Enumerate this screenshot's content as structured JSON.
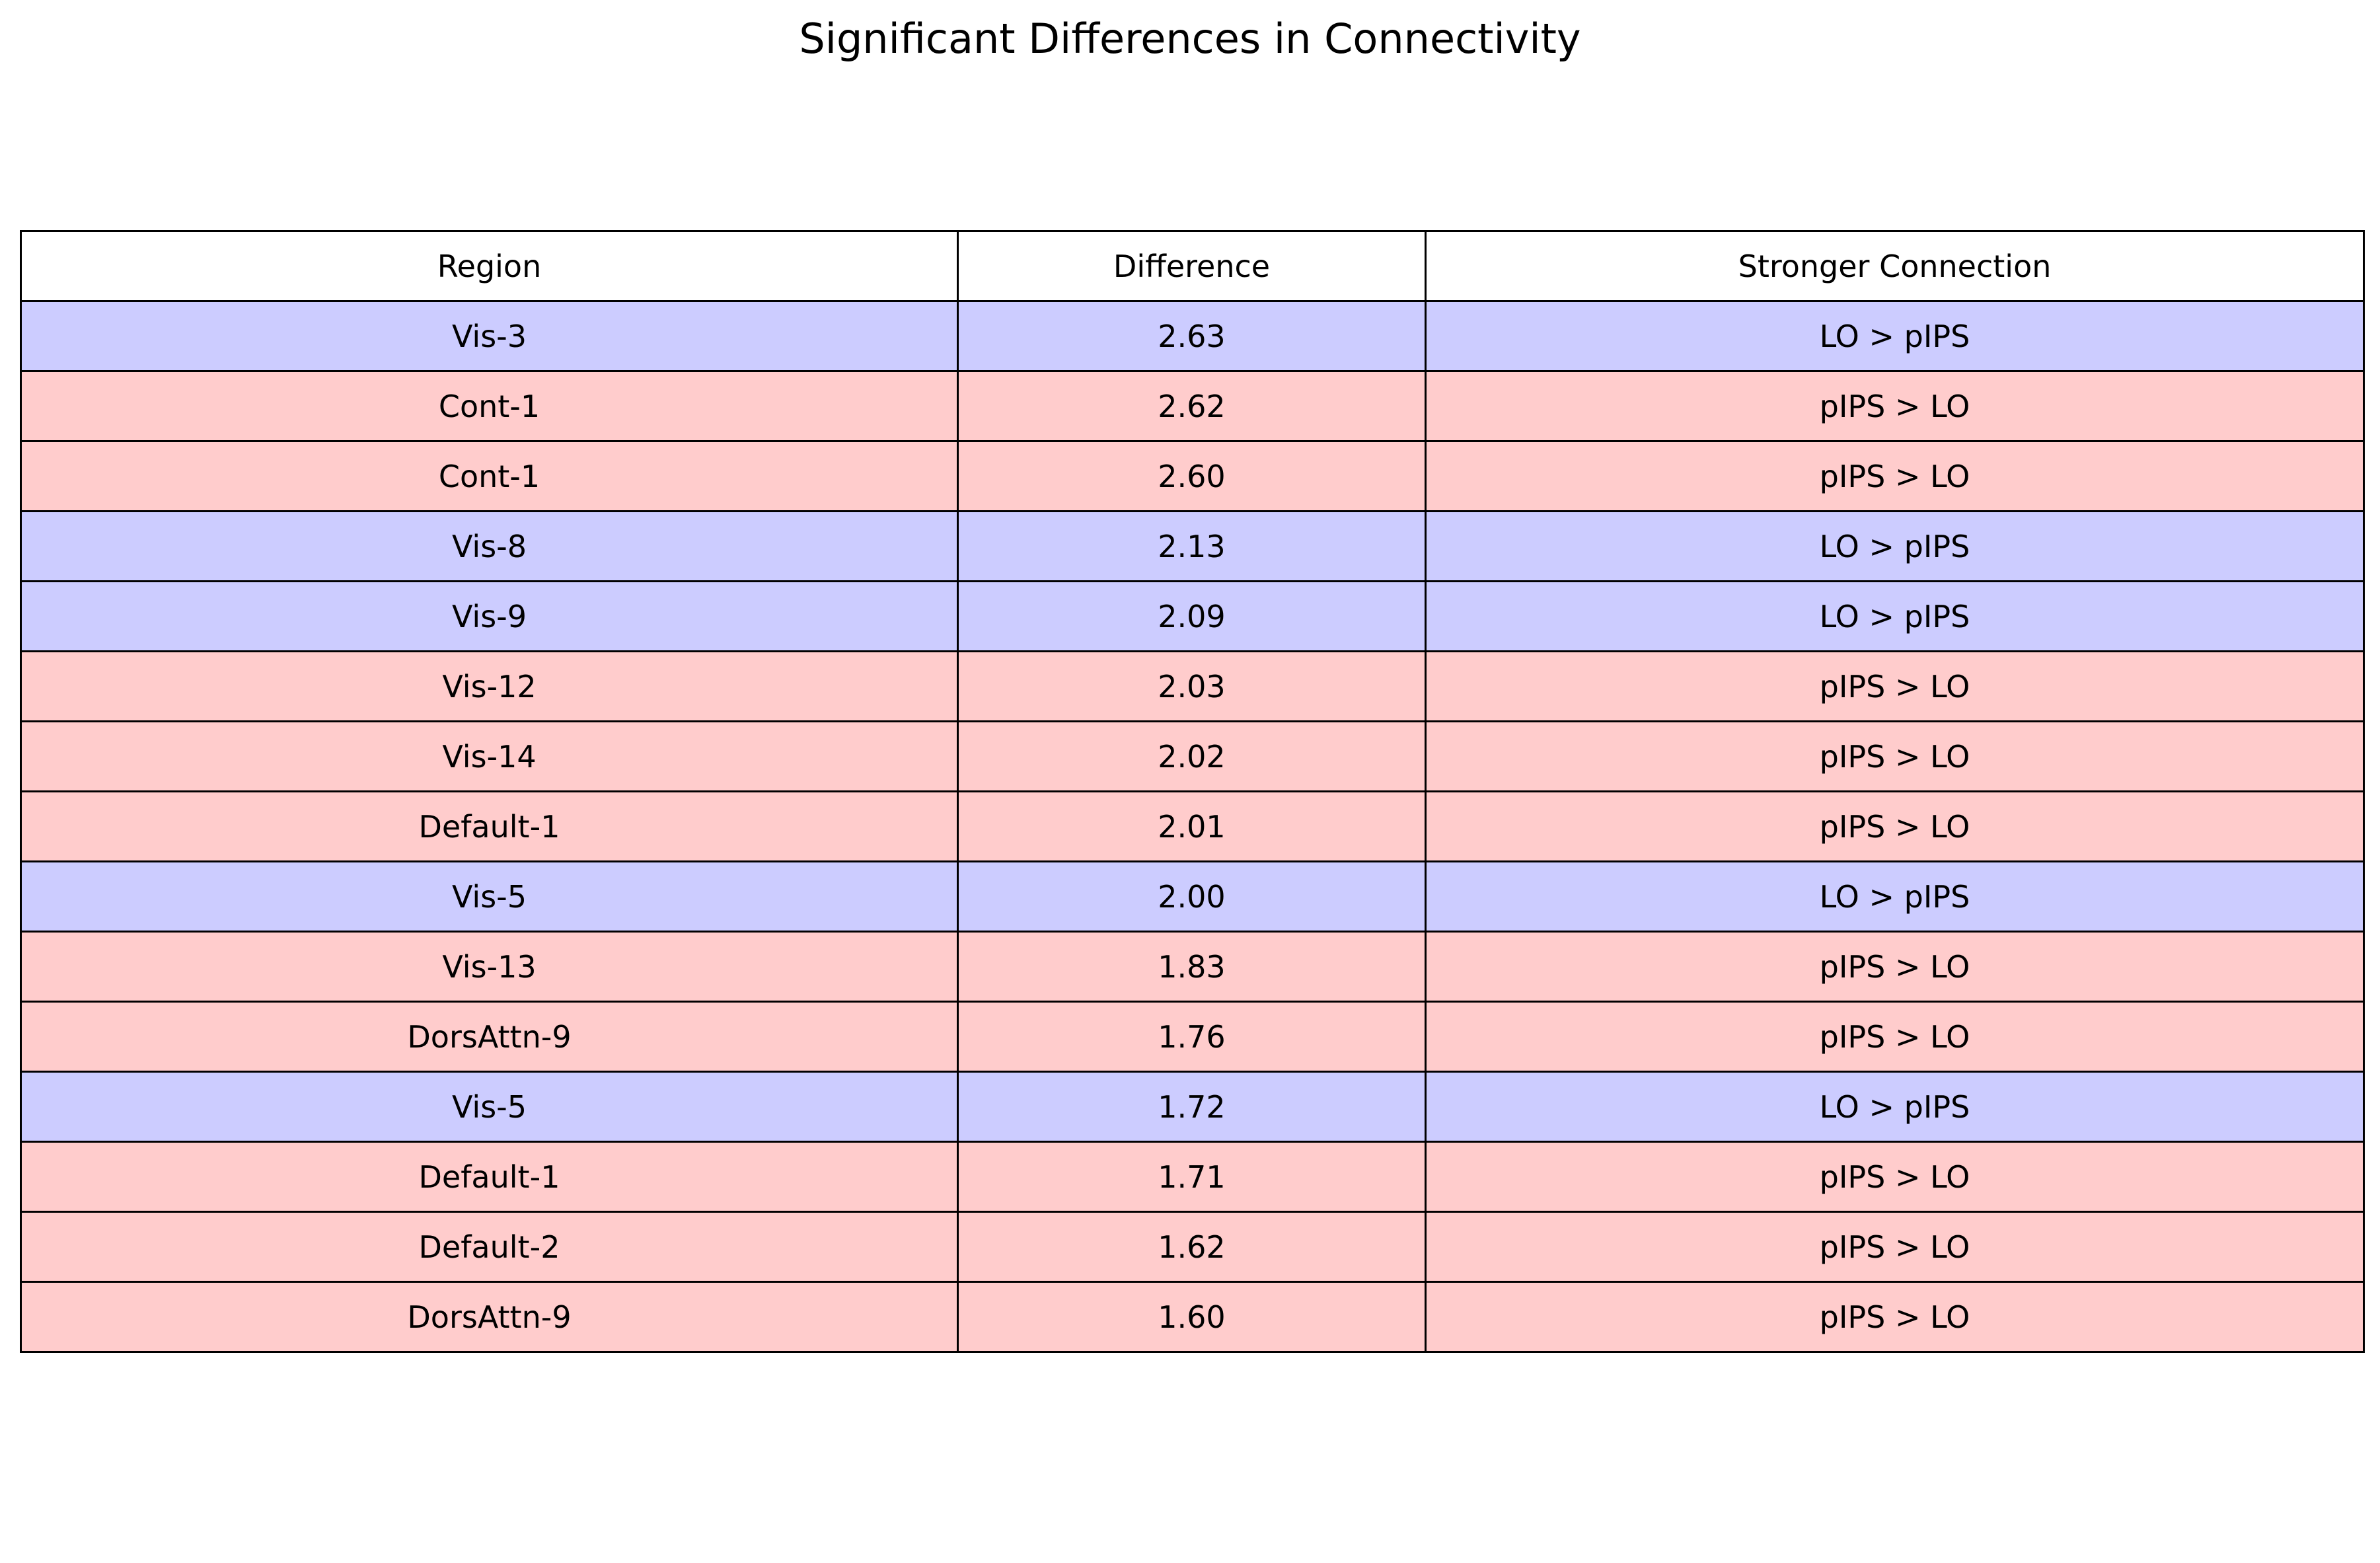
{
  "chart_data": {
    "type": "table",
    "title": "Significant Differences in Connectivity",
    "columns": [
      "Region",
      "Difference",
      "Stronger Connection"
    ],
    "colors": {
      "LO > pIPS": "#ccccff",
      "pIPS > LO": "#ffcccc",
      "header": "#ffffff",
      "border": "#000000"
    },
    "rows": [
      {
        "region": "Vis-3",
        "difference": "2.63",
        "stronger": "LO > pIPS"
      },
      {
        "region": "Cont-1",
        "difference": "2.62",
        "stronger": "pIPS > LO"
      },
      {
        "region": "Cont-1",
        "difference": "2.60",
        "stronger": "pIPS > LO"
      },
      {
        "region": "Vis-8",
        "difference": "2.13",
        "stronger": "LO > pIPS"
      },
      {
        "region": "Vis-9",
        "difference": "2.09",
        "stronger": "LO > pIPS"
      },
      {
        "region": "Vis-12",
        "difference": "2.03",
        "stronger": "pIPS > LO"
      },
      {
        "region": "Vis-14",
        "difference": "2.02",
        "stronger": "pIPS > LO"
      },
      {
        "region": "Default-1",
        "difference": "2.01",
        "stronger": "pIPS > LO"
      },
      {
        "region": "Vis-5",
        "difference": "2.00",
        "stronger": "LO > pIPS"
      },
      {
        "region": "Vis-13",
        "difference": "1.83",
        "stronger": "pIPS > LO"
      },
      {
        "region": "DorsAttn-9",
        "difference": "1.76",
        "stronger": "pIPS > LO"
      },
      {
        "region": "Vis-5",
        "difference": "1.72",
        "stronger": "LO > pIPS"
      },
      {
        "region": "Default-1",
        "difference": "1.71",
        "stronger": "pIPS > LO"
      },
      {
        "region": "Default-2",
        "difference": "1.62",
        "stronger": "pIPS > LO"
      },
      {
        "region": "DorsAttn-9",
        "difference": "1.60",
        "stronger": "pIPS > LO"
      }
    ]
  }
}
